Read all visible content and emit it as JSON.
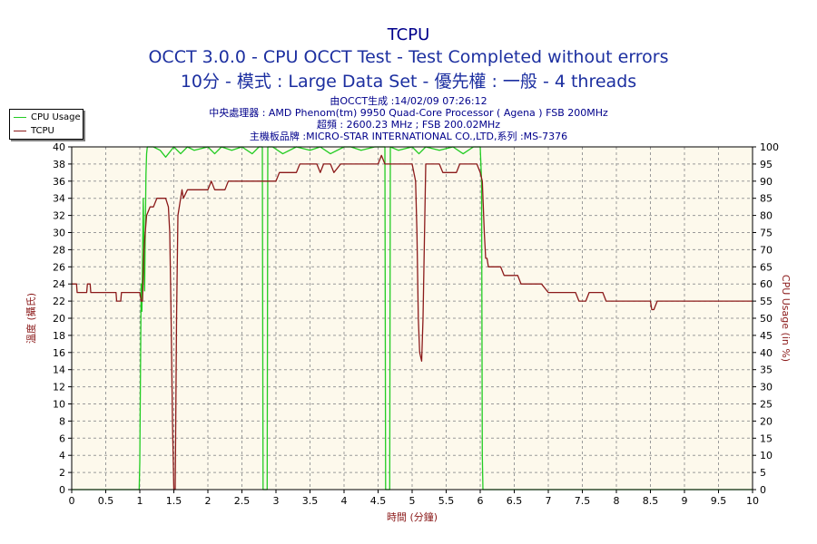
{
  "titles": {
    "main": "TCPU",
    "sub1": "OCCT 3.0.0 - CPU OCCT Test - Test Completed without errors",
    "sub2": "10分 - 模式 : Large Data Set - 優先權 : 一般 - 4 threads"
  },
  "info": [
    "由OCCT生成 :14/02/09 07:26:12",
    "中央處理器 : AMD Phenom(tm) 9950 Quad-Core Processor ( Agena ) FSB 200MHz",
    "超頻 : 2600.23 MHz ; FSB 200.02MHz",
    "主機板品牌 :MICRO-STAR INTERNATIONAL CO.,LTD,系列 :MS-7376"
  ],
  "colors": {
    "cpu": "#22cc22",
    "tcpu": "#8b1a1a",
    "plot_bg": "#fdf9ec",
    "title": "#00008b",
    "subtitle": "#1c2fa0",
    "left_axis": "#8b1a1a",
    "right_axis": "#8b1a1a"
  },
  "chart_data": {
    "type": "line",
    "xlabel": "時間 (分鐘)",
    "ylabel": "溫度 (攝氏)",
    "y2label": "CPU Usage (in %)",
    "xlim": [
      0,
      10
    ],
    "ylim": [
      0,
      40
    ],
    "y2lim": [
      0,
      100
    ],
    "xticks": [
      "0",
      "0.5",
      "1",
      "1.5",
      "2",
      "2.5",
      "3",
      "3.5",
      "4",
      "4.5",
      "5",
      "5.5",
      "6",
      "6.5",
      "7",
      "7.5",
      "8",
      "8.5",
      "9",
      "9.5",
      "10"
    ],
    "yticks": [
      "0",
      "2",
      "4",
      "6",
      "8",
      "10",
      "12",
      "14",
      "16",
      "18",
      "20",
      "22",
      "24",
      "26",
      "28",
      "30",
      "32",
      "34",
      "36",
      "38",
      "40"
    ],
    "y2ticks": [
      "0",
      "5",
      "10",
      "15",
      "20",
      "25",
      "30",
      "35",
      "40",
      "45",
      "50",
      "55",
      "60",
      "65",
      "70",
      "75",
      "80",
      "85",
      "90",
      "95",
      "100"
    ],
    "grid": true,
    "legend_position": "top-left",
    "series": [
      {
        "name": "CPU Usage",
        "axis": "right",
        "x": [
          0,
          0.99,
          1.0,
          1.02,
          1.03,
          1.05,
          1.07,
          1.09,
          1.1,
          1.11,
          1.2,
          1.3,
          1.38,
          1.5,
          1.6,
          1.7,
          1.8,
          2.0,
          2.1,
          2.2,
          2.35,
          2.5,
          2.65,
          2.75,
          2.8,
          2.81,
          2.82,
          2.86,
          2.87,
          2.88,
          2.95,
          3.1,
          3.3,
          3.5,
          3.65,
          3.8,
          4.0,
          4.1,
          4.25,
          4.45,
          4.55,
          4.6,
          4.61,
          4.62,
          4.66,
          4.67,
          4.68,
          4.8,
          5.0,
          5.1,
          5.2,
          5.4,
          5.6,
          5.75,
          5.9,
          6.0,
          6.02,
          6.03,
          6.04,
          6.05,
          6.06,
          10
        ],
        "values": [
          0,
          0,
          8,
          60,
          52,
          85,
          58,
          92,
          98,
          100,
          100,
          99,
          97,
          100,
          98,
          100,
          99,
          100,
          98,
          100,
          99,
          100,
          98,
          100,
          100,
          0,
          0,
          0,
          0,
          100,
          100,
          98,
          100,
          99,
          100,
          98,
          100,
          100,
          99,
          100,
          100,
          100,
          0,
          0,
          0,
          0,
          100,
          99,
          100,
          98,
          100,
          99,
          100,
          98,
          100,
          100,
          90,
          10,
          0,
          0,
          0,
          0
        ]
      },
      {
        "name": "TCPU",
        "axis": "left",
        "x": [
          0,
          0.07,
          0.08,
          0.22,
          0.23,
          0.27,
          0.28,
          0.65,
          0.66,
          0.72,
          0.73,
          1.0,
          1.02,
          1.04,
          1.06,
          1.08,
          1.1,
          1.15,
          1.2,
          1.25,
          1.3,
          1.38,
          1.42,
          1.44,
          1.46,
          1.48,
          1.5,
          1.52,
          1.54,
          1.56,
          1.6,
          1.62,
          1.64,
          1.7,
          1.8,
          1.85,
          2.0,
          2.05,
          2.1,
          2.25,
          2.3,
          2.4,
          2.5,
          3.0,
          3.05,
          3.3,
          3.35,
          3.6,
          3.65,
          3.7,
          3.8,
          3.85,
          3.95,
          4.0,
          4.05,
          4.5,
          4.55,
          4.6,
          4.65,
          4.7,
          5.0,
          5.05,
          5.07,
          5.09,
          5.11,
          5.14,
          5.16,
          5.2,
          5.4,
          5.45,
          5.65,
          5.7,
          5.95,
          6.0,
          6.03,
          6.06,
          6.08,
          6.1,
          6.12,
          6.2,
          6.3,
          6.35,
          6.55,
          6.6,
          6.9,
          7.0,
          7.4,
          7.45,
          7.55,
          7.6,
          7.8,
          7.85,
          7.95,
          8.0,
          8.5,
          8.52,
          8.55,
          8.6,
          8.62,
          10
        ],
        "values": [
          24,
          24,
          23,
          23,
          24,
          24,
          23,
          23,
          22,
          22,
          23,
          23,
          22,
          22,
          28,
          30,
          32,
          33,
          33,
          34,
          34,
          34,
          33,
          30,
          20,
          8,
          0,
          0,
          20,
          32,
          34,
          35,
          34,
          35,
          35,
          35,
          35,
          36,
          35,
          35,
          36,
          36,
          36,
          36,
          37,
          37,
          38,
          38,
          37,
          38,
          38,
          37,
          38,
          38,
          38,
          38,
          39,
          38,
          38,
          38,
          38,
          36,
          30,
          20,
          16,
          15,
          20,
          38,
          38,
          37,
          37,
          38,
          38,
          37,
          36,
          30,
          27,
          27,
          26,
          26,
          26,
          25,
          25,
          24,
          24,
          23,
          23,
          22,
          22,
          23,
          23,
          22,
          22,
          22,
          22,
          21,
          21,
          22,
          22,
          22
        ]
      }
    ]
  }
}
